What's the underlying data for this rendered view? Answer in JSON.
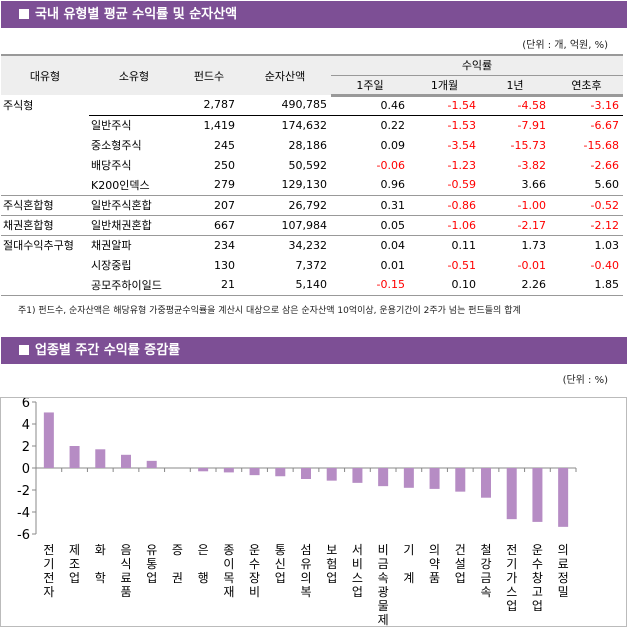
{
  "section1": {
    "title": "국내 유형별 평균 수익률 및 순자산액",
    "unit": "(단위 : 개, 억원, %)",
    "headers": {
      "major": "대유형",
      "minor": "소유형",
      "funds": "펀드수",
      "nav": "순자산액",
      "returns": "수익률",
      "w1": "1주일",
      "m1": "1개월",
      "y1": "1년",
      "ytd": "연초후"
    },
    "rows": [
      [
        "주식형",
        "",
        "2,787",
        "490,785",
        "0.46",
        "-1.54",
        "-4.58",
        "-3.16"
      ],
      [
        "",
        "일반주식",
        "1,419",
        "174,632",
        "0.22",
        "-1.53",
        "-7.91",
        "-6.67"
      ],
      [
        "",
        "중소형주식",
        "245",
        "28,186",
        "0.09",
        "-3.54",
        "-15.73",
        "-15.68"
      ],
      [
        "",
        "배당주식",
        "250",
        "50,592",
        "-0.06",
        "-1.23",
        "-3.82",
        "-2.66"
      ],
      [
        "",
        "K200인덱스",
        "279",
        "129,130",
        "0.96",
        "-0.59",
        "3.66",
        "5.60"
      ],
      [
        "주식혼합형",
        "일반주식혼합",
        "207",
        "26,792",
        "0.31",
        "-0.86",
        "-1.00",
        "-0.52"
      ],
      [
        "채권혼합형",
        "일반채권혼합",
        "667",
        "107,984",
        "0.05",
        "-1.06",
        "-2.17",
        "-2.12"
      ],
      [
        "절대수익추구형",
        "채권알파",
        "234",
        "34,232",
        "0.04",
        "0.11",
        "1.73",
        "1.03"
      ],
      [
        "",
        "시장중립",
        "130",
        "7,372",
        "0.01",
        "-0.51",
        "-0.01",
        "-0.40"
      ],
      [
        "",
        "공모주하이일드",
        "21",
        "5,140",
        "-0.15",
        "0.10",
        "2.26",
        "1.85"
      ]
    ],
    "note": "주1) 펀드수, 순자산액은 해당유형 가중평균수익률을 계산시 대상으로 삼은 순자산액 10억이상, 운용기간이 2주가 넘는 펀드들의 합계"
  },
  "section2": {
    "title": "업종별 주간 수익률 증감률",
    "unit": "(단위 : %)"
  },
  "colors": {
    "banner": "#7d4f95",
    "bar": "#b68cc4",
    "negative": "#ff0000"
  },
  "chart_data": {
    "type": "bar",
    "ylim": [
      -6,
      6
    ],
    "yticks": [
      6,
      4,
      2,
      0,
      -2,
      -4,
      -6
    ],
    "grid": false,
    "categories": [
      "전기전자",
      "제조업",
      "화 학",
      "음식료품",
      "유통업",
      "증 권",
      "은 행",
      "종이목재",
      "운수장비",
      "통신업",
      "섬유의복",
      "보험업",
      "서비스업",
      "비금속광물제품",
      "기 계",
      "의약품",
      "건설업",
      "철강금속",
      "전기가스업",
      "운수창고업",
      "의료정밀"
    ],
    "values": [
      5.05,
      2.0,
      1.7,
      1.2,
      0.65,
      0,
      -0.3,
      -0.4,
      -0.65,
      -0.75,
      -1.0,
      -1.15,
      -1.35,
      -1.65,
      -1.8,
      -1.9,
      -2.15,
      -2.7,
      -4.65,
      -4.9,
      -5.35
    ]
  }
}
